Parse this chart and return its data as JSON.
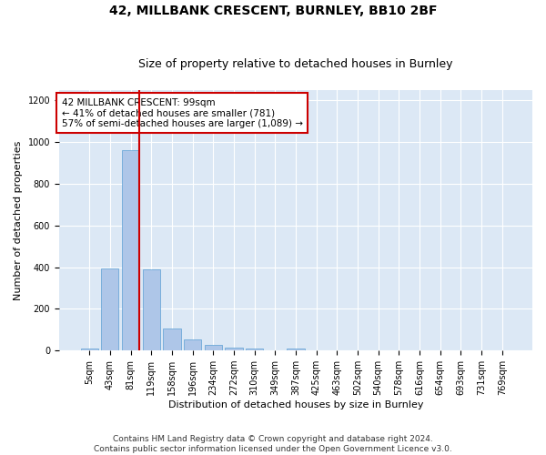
{
  "title_line1": "42, MILLBANK CRESCENT, BURNLEY, BB10 2BF",
  "title_line2": "Size of property relative to detached houses in Burnley",
  "xlabel": "Distribution of detached houses by size in Burnley",
  "ylabel": "Number of detached properties",
  "categories": [
    "5sqm",
    "43sqm",
    "81sqm",
    "119sqm",
    "158sqm",
    "196sqm",
    "234sqm",
    "272sqm",
    "310sqm",
    "349sqm",
    "387sqm",
    "425sqm",
    "463sqm",
    "502sqm",
    "540sqm",
    "578sqm",
    "616sqm",
    "654sqm",
    "693sqm",
    "731sqm",
    "769sqm"
  ],
  "values": [
    10,
    395,
    960,
    390,
    105,
    55,
    25,
    13,
    8,
    0,
    10,
    0,
    0,
    0,
    0,
    0,
    0,
    0,
    0,
    0,
    0
  ],
  "bar_color": "#aec6e8",
  "bar_edge_color": "#5a9fd4",
  "vline_color": "#cc0000",
  "annotation_text": "42 MILLBANK CRESCENT: 99sqm\n← 41% of detached houses are smaller (781)\n57% of semi-detached houses are larger (1,089) →",
  "annotation_box_color": "#cc0000",
  "annotation_text_color": "#000000",
  "ylim": [
    0,
    1250
  ],
  "yticks": [
    0,
    200,
    400,
    600,
    800,
    1000,
    1200
  ],
  "background_color": "#dce8f5",
  "footer_line1": "Contains HM Land Registry data © Crown copyright and database right 2024.",
  "footer_line2": "Contains public sector information licensed under the Open Government Licence v3.0.",
  "title_fontsize": 10,
  "subtitle_fontsize": 9,
  "axis_label_fontsize": 8,
  "tick_fontsize": 7,
  "annotation_fontsize": 7.5,
  "footer_fontsize": 6.5
}
